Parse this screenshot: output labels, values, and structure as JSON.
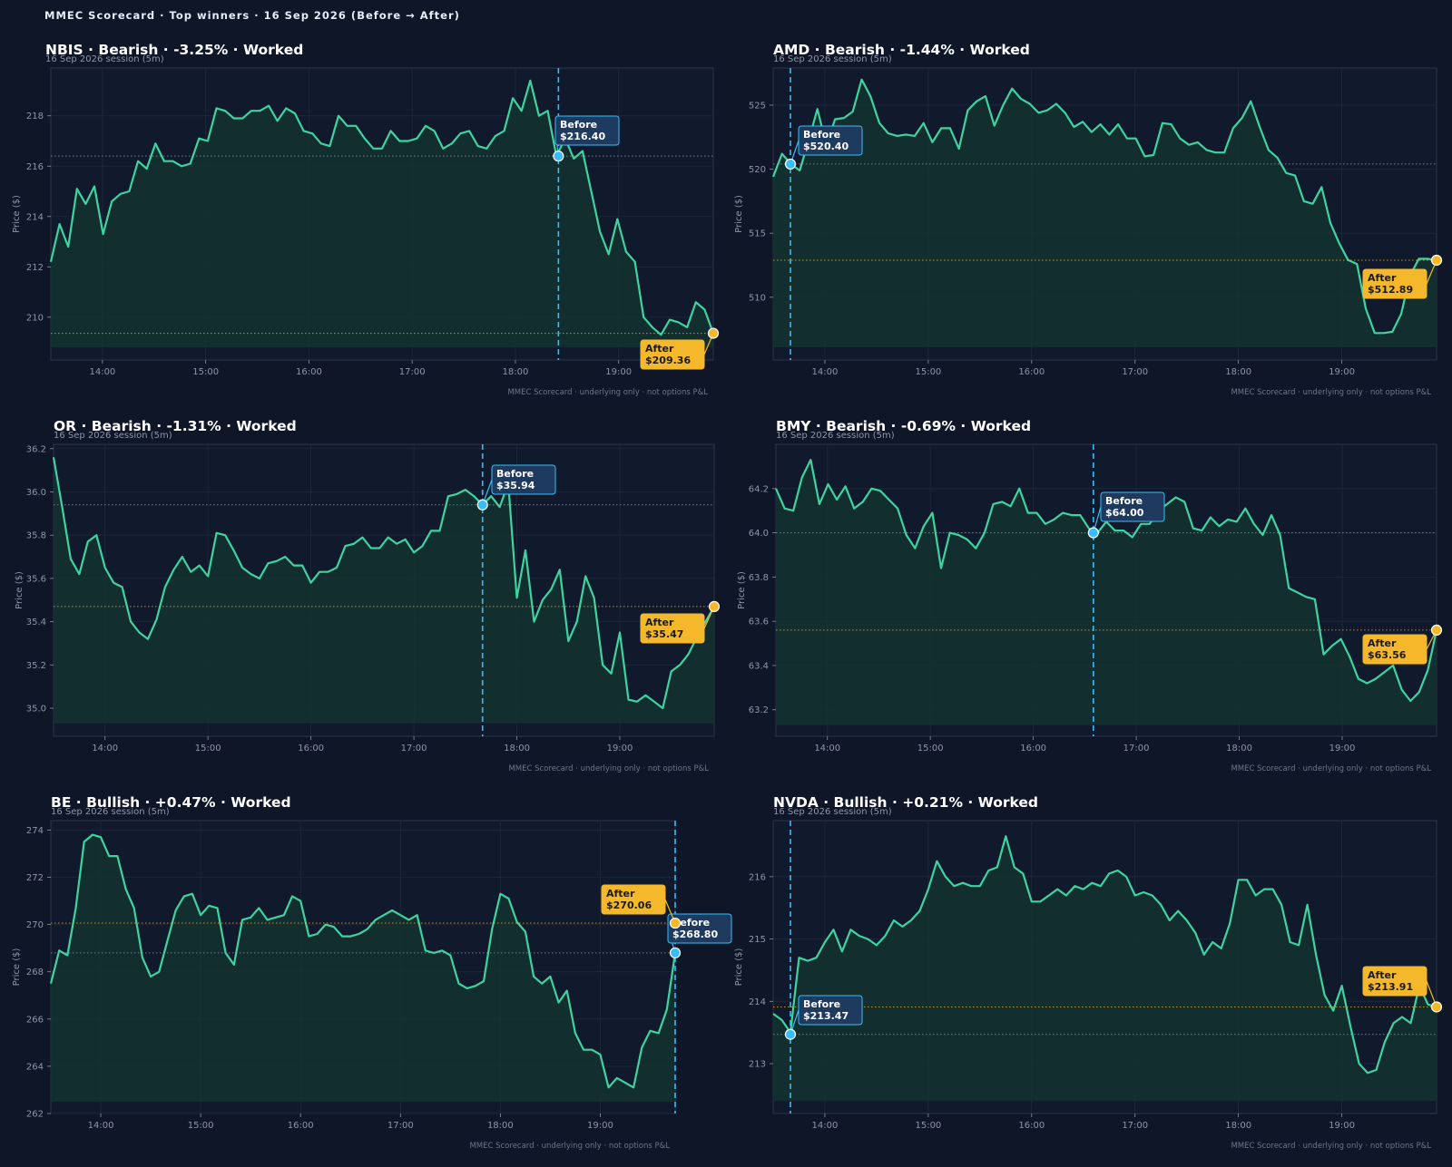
{
  "page_title": "MMEC Scorecard · Top winners · 16 Sep 2026 (Before → After)",
  "colors": {
    "background": "#0e1628",
    "plot_background": "#111a2c",
    "line": "#3fd3a0",
    "area_fill": "#143230",
    "before_marker": "#38bdf8",
    "before_label_bg": "#1e3a5f",
    "after_marker": "#f5b82a",
    "after_label_bg": "#f5b82a",
    "text": "#ffffff",
    "muted_text": "#8b97a8"
  },
  "chart_data": [
    {
      "type": "line",
      "title": "NBIS · Bearish · -3.25% · Worked",
      "subtitle": "16 Sep 2026 session (5m)",
      "ylabel": "Price ($)",
      "footer": "MMEC Scorecard · underlying only · not options P&L",
      "x_ticks": [
        "14:00",
        "15:00",
        "16:00",
        "17:00",
        "18:00",
        "19:00"
      ],
      "xlim": [
        "13:30",
        "19:55"
      ],
      "y_ticks": [
        210,
        212,
        214,
        216,
        218
      ],
      "ylim": [
        208.3,
        219.9
      ],
      "area_base": 208.8,
      "before": {
        "time": "18:25",
        "price": 216.4,
        "label": "Before",
        "value_label": "$216.40"
      },
      "after": {
        "time": "19:55",
        "price": 209.36,
        "label": "After",
        "value_label": "$209.36"
      },
      "series": [
        {
          "values": [
            212.2,
            213.7,
            212.8,
            215.1,
            214.5,
            215.2,
            213.3,
            214.6,
            214.9,
            215.0,
            216.2,
            215.9,
            216.9,
            216.2,
            216.2,
            216.0,
            216.1,
            217.1,
            217.0,
            218.3,
            218.2,
            217.9,
            217.9,
            218.2,
            218.2,
            218.4,
            217.8,
            218.3,
            218.1,
            217.4,
            217.3,
            216.9,
            216.8,
            218.0,
            217.6,
            217.6,
            217.1,
            216.7,
            216.7,
            217.4,
            217.0,
            217.0,
            217.1,
            217.6,
            217.4,
            216.7,
            216.9,
            217.3,
            217.4,
            216.8,
            216.7,
            217.2,
            217.4,
            218.7,
            218.2,
            219.4,
            218.0,
            218.2,
            216.4,
            217.1,
            216.3,
            216.6,
            215.0,
            213.4,
            212.5,
            213.9,
            212.6,
            212.2,
            210.0,
            209.6,
            209.3,
            209.9,
            209.8,
            209.6,
            210.6,
            210.3,
            209.36
          ]
        }
      ]
    },
    {
      "type": "line",
      "title": "AMD · Bearish · -1.44% · Worked",
      "subtitle": "16 Sep 2026 session (5m)",
      "ylabel": "Price ($)",
      "footer": "MMEC Scorecard · underlying only · not options P&L",
      "x_ticks": [
        "14:00",
        "15:00",
        "16:00",
        "17:00",
        "18:00",
        "19:00"
      ],
      "xlim": [
        "13:30",
        "19:55"
      ],
      "y_ticks": [
        510,
        515,
        520,
        525
      ],
      "ylim": [
        505.1,
        527.9
      ],
      "area_base": 506.1,
      "before": {
        "time": "13:40",
        "price": 520.4,
        "label": "Before",
        "value_label": "$520.40"
      },
      "after": {
        "time": "19:55",
        "price": 512.89,
        "label": "After",
        "value_label": "$512.89"
      },
      "series": [
        {
          "values": [
            519.4,
            521.2,
            520.4,
            519.9,
            522.2,
            524.7,
            521.9,
            523.9,
            524.0,
            524.5,
            527.0,
            525.7,
            523.6,
            522.8,
            522.6,
            522.7,
            522.6,
            523.6,
            522.1,
            523.2,
            523.2,
            521.6,
            524.6,
            525.3,
            525.7,
            523.4,
            525.0,
            526.3,
            525.5,
            525.1,
            524.4,
            524.6,
            525.1,
            524.4,
            523.3,
            523.7,
            522.9,
            523.5,
            522.7,
            523.5,
            522.4,
            522.4,
            521.0,
            521.1,
            523.6,
            523.5,
            522.4,
            521.9,
            522.1,
            521.5,
            521.3,
            521.3,
            523.2,
            524.0,
            525.3,
            523.3,
            521.5,
            520.9,
            519.7,
            519.5,
            517.5,
            517.3,
            518.6,
            515.8,
            514.2,
            512.9,
            512.6,
            509.1,
            507.2,
            507.2,
            507.3,
            508.7,
            511.7,
            513.0,
            513.0,
            512.89
          ]
        }
      ]
    },
    {
      "type": "line",
      "title": "OR · Bearish · -1.31% · Worked",
      "subtitle": "16 Sep 2026 session (5m)",
      "ylabel": "Price ($)",
      "footer": "MMEC Scorecard · underlying only · not options P&L",
      "x_ticks": [
        "14:00",
        "15:00",
        "16:00",
        "17:00",
        "18:00",
        "19:00"
      ],
      "xlim": [
        "13:30",
        "19:55"
      ],
      "y_ticks": [
        35.0,
        35.2,
        35.4,
        35.6,
        35.8,
        36.0,
        36.2
      ],
      "y_tick_labels": [
        "35.0",
        "35.2",
        "35.4",
        "35.6",
        "35.8",
        "36.0",
        "36.2"
      ],
      "ylim": [
        34.87,
        36.22
      ],
      "area_base": 34.93,
      "before": {
        "time": "17:40",
        "price": 35.94,
        "label": "Before",
        "value_label": "$35.94"
      },
      "after": {
        "time": "19:55",
        "price": 35.47,
        "label": "After",
        "value_label": "$35.47"
      },
      "series": [
        {
          "values": [
            36.16,
            35.93,
            35.69,
            35.62,
            35.77,
            35.8,
            35.65,
            35.58,
            35.56,
            35.4,
            35.35,
            35.32,
            35.41,
            35.56,
            35.64,
            35.7,
            35.63,
            35.66,
            35.61,
            35.81,
            35.8,
            35.73,
            35.65,
            35.62,
            35.6,
            35.67,
            35.68,
            35.7,
            35.66,
            35.66,
            35.58,
            35.63,
            35.63,
            35.65,
            35.75,
            35.76,
            35.79,
            35.74,
            35.74,
            35.79,
            35.76,
            35.78,
            35.72,
            35.75,
            35.82,
            35.82,
            35.98,
            35.99,
            36.01,
            35.98,
            35.94,
            35.98,
            35.93,
            36.04,
            35.51,
            35.73,
            35.4,
            35.5,
            35.55,
            35.64,
            35.31,
            35.4,
            35.61,
            35.51,
            35.2,
            35.16,
            35.35,
            35.04,
            35.03,
            35.06,
            35.03,
            35.0,
            35.17,
            35.2,
            35.25,
            35.33,
            35.4,
            35.47
          ]
        }
      ]
    },
    {
      "type": "line",
      "title": "BMY · Bearish · -0.69% · Worked",
      "subtitle": "16 Sep 2026 session (5m)",
      "ylabel": "Price ($)",
      "footer": "MMEC Scorecard · underlying only · not options P&L",
      "x_ticks": [
        "14:00",
        "15:00",
        "16:00",
        "17:00",
        "18:00",
        "19:00"
      ],
      "xlim": [
        "13:30",
        "19:55"
      ],
      "y_ticks": [
        63.2,
        63.4,
        63.6,
        63.8,
        64.0,
        64.2
      ],
      "y_tick_labels": [
        "63.2",
        "63.4",
        "63.6",
        "63.8",
        "64.0",
        "64.2"
      ],
      "ylim": [
        63.08,
        64.4
      ],
      "area_base": 63.13,
      "before": {
        "time": "16:35",
        "price": 64.0,
        "label": "Before",
        "value_label": "$64.00"
      },
      "after": {
        "time": "19:55",
        "price": 63.56,
        "label": "After",
        "value_label": "$63.56"
      },
      "series": [
        {
          "values": [
            64.2,
            64.11,
            64.1,
            64.25,
            64.33,
            64.13,
            64.22,
            64.15,
            64.21,
            64.11,
            64.14,
            64.2,
            64.19,
            64.15,
            64.11,
            63.99,
            63.93,
            64.03,
            64.09,
            63.84,
            64.0,
            63.99,
            63.97,
            63.93,
            64.0,
            64.13,
            64.14,
            64.12,
            64.2,
            64.09,
            64.09,
            64.04,
            64.06,
            64.09,
            64.08,
            64.08,
            64.02,
            64.0,
            64.05,
            64.01,
            64.01,
            63.98,
            64.04,
            64.04,
            64.1,
            64.13,
            64.16,
            64.14,
            64.02,
            64.01,
            64.07,
            64.03,
            64.06,
            64.05,
            64.11,
            64.04,
            63.99,
            64.08,
            63.99,
            63.75,
            63.73,
            63.71,
            63.7,
            63.45,
            63.49,
            63.52,
            63.44,
            63.34,
            63.32,
            63.34,
            63.37,
            63.4,
            63.29,
            63.24,
            63.28,
            63.38,
            63.56
          ]
        }
      ]
    },
    {
      "type": "line",
      "title": "BE · Bullish · +0.47% · Worked",
      "subtitle": "16 Sep 2026 session (5m)",
      "ylabel": "Price ($)",
      "footer": "MMEC Scorecard · underlying only · not options P&L",
      "x_ticks": [
        "14:00",
        "15:00",
        "16:00",
        "17:00",
        "18:00",
        "19:00"
      ],
      "xlim": [
        "13:30",
        "19:45"
      ],
      "y_ticks": [
        262,
        264,
        266,
        268,
        270,
        272,
        274
      ],
      "ylim": [
        262.0,
        274.4
      ],
      "area_base": 262.5,
      "before": {
        "time": "19:45",
        "price": 268.8,
        "label": "Before",
        "value_label": "$268.80"
      },
      "after": {
        "time": "19:45",
        "price": 270.06,
        "label": "After",
        "value_label": "$270.06"
      },
      "series": [
        {
          "values": [
            267.5,
            268.9,
            268.7,
            270.7,
            273.5,
            273.8,
            273.7,
            272.9,
            272.9,
            271.5,
            270.7,
            268.6,
            267.8,
            268.0,
            269.3,
            270.6,
            271.2,
            271.3,
            270.4,
            270.8,
            270.7,
            268.8,
            268.3,
            270.2,
            270.3,
            270.7,
            270.2,
            270.3,
            270.4,
            271.2,
            271.0,
            269.5,
            269.6,
            270.0,
            269.9,
            269.5,
            269.5,
            269.6,
            269.8,
            270.2,
            270.4,
            270.6,
            270.4,
            270.2,
            270.4,
            268.9,
            268.8,
            268.9,
            268.7,
            267.5,
            267.3,
            267.4,
            267.6,
            269.8,
            271.3,
            271.1,
            270.1,
            269.7,
            267.8,
            267.5,
            267.8,
            266.7,
            267.2,
            265.4,
            264.7,
            264.7,
            264.5,
            263.1,
            263.5,
            263.3,
            263.1,
            264.8,
            265.5,
            265.4,
            266.4,
            268.8
          ]
        }
      ]
    },
    {
      "type": "line",
      "title": "NVDA · Bullish · +0.21% · Worked",
      "subtitle": "16 Sep 2026 session (5m)",
      "ylabel": "Price ($)",
      "footer": "MMEC Scorecard · underlying only · not options P&L",
      "x_ticks": [
        "14:00",
        "15:00",
        "16:00",
        "17:00",
        "18:00",
        "19:00"
      ],
      "xlim": [
        "13:30",
        "19:55"
      ],
      "y_ticks": [
        213,
        214,
        215,
        216
      ],
      "ylim": [
        212.2,
        216.9
      ],
      "area_base": 212.4,
      "before": {
        "time": "13:40",
        "price": 213.47,
        "label": "Before",
        "value_label": "$213.47"
      },
      "after": {
        "time": "19:55",
        "price": 213.91,
        "label": "After",
        "value_label": "$213.91"
      },
      "series": [
        {
          "values": [
            213.8,
            213.7,
            213.5,
            214.7,
            214.65,
            214.7,
            214.95,
            215.15,
            214.8,
            215.15,
            215.05,
            215.0,
            214.9,
            215.05,
            215.3,
            215.2,
            215.3,
            215.45,
            215.8,
            216.25,
            216.0,
            215.85,
            215.9,
            215.85,
            215.85,
            216.1,
            216.15,
            216.65,
            216.15,
            216.05,
            215.6,
            215.6,
            215.7,
            215.8,
            215.7,
            215.85,
            215.8,
            215.9,
            215.85,
            216.05,
            216.1,
            216.0,
            215.7,
            215.75,
            215.7,
            215.55,
            215.3,
            215.45,
            215.3,
            215.1,
            214.75,
            214.95,
            214.85,
            215.25,
            215.95,
            215.95,
            215.7,
            215.8,
            215.8,
            215.55,
            214.95,
            214.9,
            215.55,
            214.75,
            214.1,
            213.85,
            214.25,
            213.6,
            213.0,
            212.85,
            212.9,
            213.35,
            213.65,
            213.75,
            213.65,
            214.25,
            213.95,
            213.91
          ]
        }
      ]
    }
  ]
}
